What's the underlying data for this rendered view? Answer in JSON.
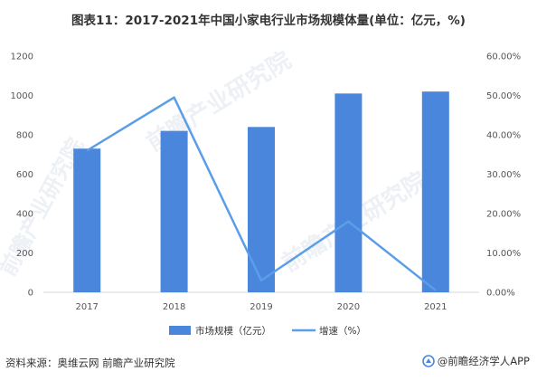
{
  "title": "图表11：2017-2021年中国小家电行业市场规模体量(单位：亿元，%)",
  "watermark": "前瞻产业研究院",
  "footer": {
    "source": "资料来源：奥维云网 前瞻产业研究院",
    "brand": "@前瞻经济学人APP"
  },
  "colors": {
    "bar": "#4a86dc",
    "line": "#5b9ee8",
    "axis": "#d9d9d9"
  },
  "chart_data": {
    "type": "bar",
    "categories": [
      "2017",
      "2018",
      "2019",
      "2020",
      "2021"
    ],
    "series": [
      {
        "name": "市场规模（亿元）",
        "type": "bar",
        "axis": "left",
        "values": [
          730,
          820,
          840,
          1010,
          1020
        ]
      },
      {
        "name": "增速（%）",
        "type": "line",
        "axis": "right",
        "values": [
          36.0,
          49.5,
          3.0,
          18.0,
          0.5
        ]
      }
    ],
    "y_left": {
      "min": 0,
      "max": 1200,
      "ticks": [
        "0",
        "200",
        "400",
        "600",
        "800",
        "1000",
        "1200"
      ]
    },
    "y_right": {
      "min": 0,
      "max": 60,
      "ticks": [
        "0.00%",
        "10.00%",
        "20.00%",
        "30.00%",
        "40.00%",
        "50.00%",
        "60.00%"
      ]
    },
    "grid": false,
    "legend_position": "bottom"
  }
}
